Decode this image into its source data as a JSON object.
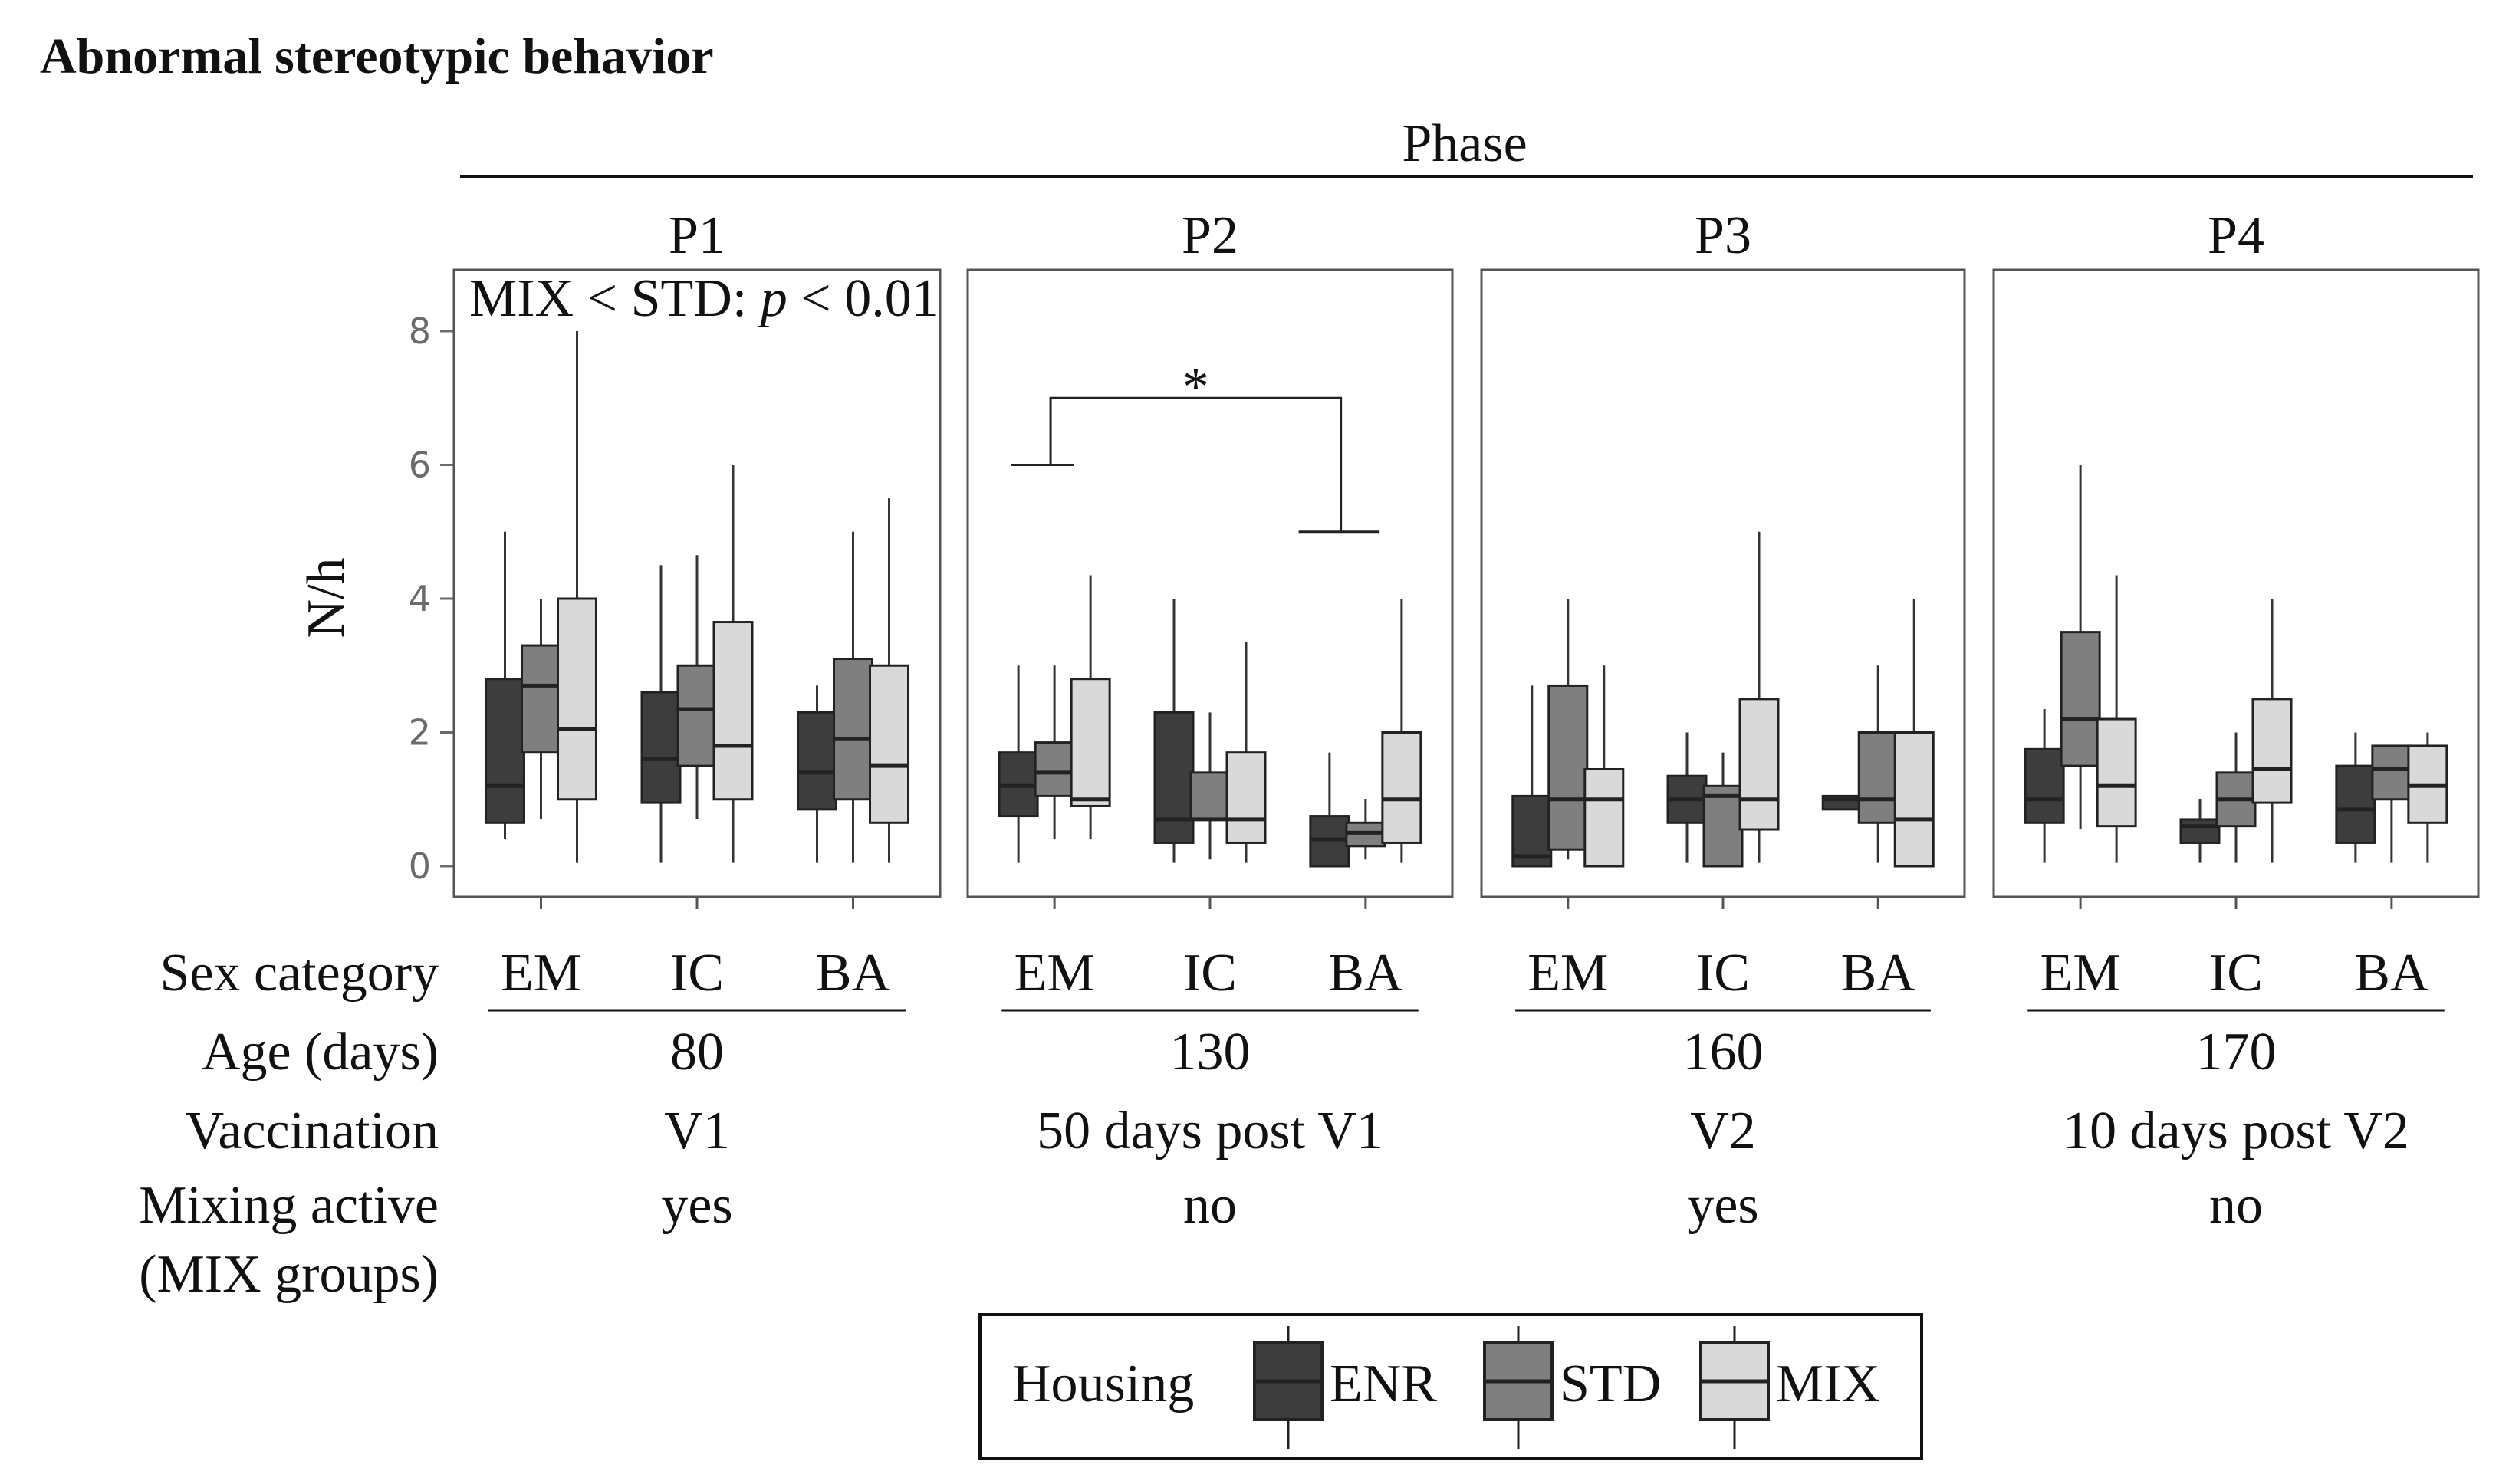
{
  "chart_data": {
    "type": "box",
    "title": "Abnormal stereotypic behavior",
    "facet_header": "Phase",
    "ylabel": "N/h",
    "ylim": [
      0,
      8
    ],
    "yticks": [
      0,
      2,
      4,
      6,
      8
    ],
    "groups": [
      "EM",
      "IC",
      "BA"
    ],
    "series": [
      {
        "name": "ENR",
        "color": "#3d3d3d"
      },
      {
        "name": "STD",
        "color": "#7f7f7f"
      },
      {
        "name": "MIX",
        "color": "#d9d9d9"
      }
    ],
    "legend": {
      "title": "Housing",
      "labels": [
        "ENR",
        "STD",
        "MIX"
      ]
    },
    "table_labels": {
      "sex": "Sex category",
      "age": "Age (days)",
      "vaccination": "Vaccination",
      "mixing_line1": "Mixing active",
      "mixing_line2": "(MIX groups)"
    },
    "phases": [
      {
        "name": "P1",
        "annotation_pre": "MIX < STD: ",
        "annotation_p": "p",
        "annotation_post": " < 0.01",
        "age": "80",
        "vaccination": "V1",
        "mixing": "yes",
        "boxes": [
          [
            {
              "min": 0.4,
              "q1": 0.65,
              "median": 1.2,
              "q3": 2.8,
              "max": 5.0
            },
            {
              "min": 0.7,
              "q1": 1.7,
              "median": 2.7,
              "q3": 3.3,
              "max": 4.0
            },
            {
              "min": 0.05,
              "q1": 1.0,
              "median": 2.05,
              "q3": 4.0,
              "max": 8.0
            }
          ],
          [
            {
              "min": 0.05,
              "q1": 0.95,
              "median": 1.6,
              "q3": 2.6,
              "max": 4.5
            },
            {
              "min": 0.7,
              "q1": 1.5,
              "median": 2.35,
              "q3": 3.0,
              "max": 4.65
            },
            {
              "min": 0.05,
              "q1": 1.0,
              "median": 1.8,
              "q3": 3.65,
              "max": 6.0
            }
          ],
          [
            {
              "min": 0.05,
              "q1": 0.85,
              "median": 1.4,
              "q3": 2.3,
              "max": 2.7
            },
            {
              "min": 0.05,
              "q1": 1.0,
              "median": 1.9,
              "q3": 3.1,
              "max": 5.0
            },
            {
              "min": 0.05,
              "q1": 0.65,
              "median": 1.5,
              "q3": 3.0,
              "max": 5.5
            }
          ]
        ]
      },
      {
        "name": "P2",
        "annotation": "*",
        "age": "130",
        "vaccination": "50 days post V1",
        "mixing": "no",
        "boxes": [
          [
            {
              "min": 0.05,
              "q1": 0.75,
              "median": 1.2,
              "q3": 1.7,
              "max": 3.0
            },
            {
              "min": 0.4,
              "q1": 1.05,
              "median": 1.4,
              "q3": 1.85,
              "max": 3.0
            },
            {
              "min": 0.4,
              "q1": 0.9,
              "median": 1.0,
              "q3": 2.8,
              "max": 4.35
            }
          ],
          [
            {
              "min": 0.05,
              "q1": 0.35,
              "median": 0.7,
              "q3": 2.3,
              "max": 4.0
            },
            {
              "min": 0.1,
              "q1": 0.7,
              "median": 0.7,
              "q3": 1.4,
              "max": 2.3
            },
            {
              "min": 0.05,
              "q1": 0.35,
              "median": 0.7,
              "q3": 1.7,
              "max": 3.35
            }
          ],
          [
            {
              "min": 0.0,
              "q1": 0.0,
              "median": 0.4,
              "q3": 0.75,
              "max": 1.7
            },
            {
              "min": 0.1,
              "q1": 0.3,
              "median": 0.5,
              "q3": 0.65,
              "max": 1.0
            },
            {
              "min": 0.05,
              "q1": 0.35,
              "median": 1.0,
              "q3": 2.0,
              "max": 4.0
            }
          ]
        ]
      },
      {
        "name": "P3",
        "age": "160",
        "vaccination": "V2",
        "mixing": "yes",
        "boxes": [
          [
            {
              "min": 0.0,
              "q1": 0.0,
              "median": 0.15,
              "q3": 1.05,
              "max": 2.7
            },
            {
              "min": 0.1,
              "q1": 0.25,
              "median": 1.0,
              "q3": 2.7,
              "max": 4.0
            },
            {
              "min": 0.0,
              "q1": 0.0,
              "median": 1.0,
              "q3": 1.45,
              "max": 3.0
            }
          ],
          [
            {
              "min": 0.05,
              "q1": 0.65,
              "median": 1.0,
              "q3": 1.35,
              "max": 2.0
            },
            {
              "min": 0.0,
              "q1": 0.0,
              "median": 1.05,
              "q3": 1.2,
              "max": 1.7
            },
            {
              "min": 0.05,
              "q1": 0.55,
              "median": 1.0,
              "q3": 2.5,
              "max": 5.0
            }
          ],
          [
            {
              "min": 0.85,
              "q1": 0.85,
              "median": 1.0,
              "q3": 1.05,
              "max": 1.05
            },
            {
              "min": 0.05,
              "q1": 0.65,
              "median": 1.0,
              "q3": 2.0,
              "max": 3.0
            },
            {
              "min": 0.0,
              "q1": 0.0,
              "median": 0.7,
              "q3": 2.0,
              "max": 4.0
            }
          ]
        ]
      },
      {
        "name": "P4",
        "age": "170",
        "vaccination": "10 days post V2",
        "mixing": "no",
        "boxes": [
          [
            {
              "min": 0.05,
              "q1": 0.65,
              "median": 1.0,
              "q3": 1.75,
              "max": 2.35
            },
            {
              "min": 0.55,
              "q1": 1.5,
              "median": 2.2,
              "q3": 3.5,
              "max": 6.0
            },
            {
              "min": 0.05,
              "q1": 0.6,
              "median": 1.2,
              "q3": 2.2,
              "max": 4.35
            }
          ],
          [
            {
              "min": 0.05,
              "q1": 0.35,
              "median": 0.6,
              "q3": 0.7,
              "max": 1.0
            },
            {
              "min": 0.05,
              "q1": 0.6,
              "median": 1.0,
              "q3": 1.4,
              "max": 2.0
            },
            {
              "min": 0.05,
              "q1": 0.95,
              "median": 1.45,
              "q3": 2.5,
              "max": 4.0
            }
          ],
          [
            {
              "min": 0.05,
              "q1": 0.35,
              "median": 0.85,
              "q3": 1.5,
              "max": 2.0
            },
            {
              "min": 0.05,
              "q1": 1.0,
              "median": 1.45,
              "q3": 1.8,
              "max": 1.8
            },
            {
              "min": 0.05,
              "q1": 0.65,
              "median": 1.2,
              "q3": 1.8,
              "max": 2.0
            }
          ]
        ]
      }
    ]
  }
}
